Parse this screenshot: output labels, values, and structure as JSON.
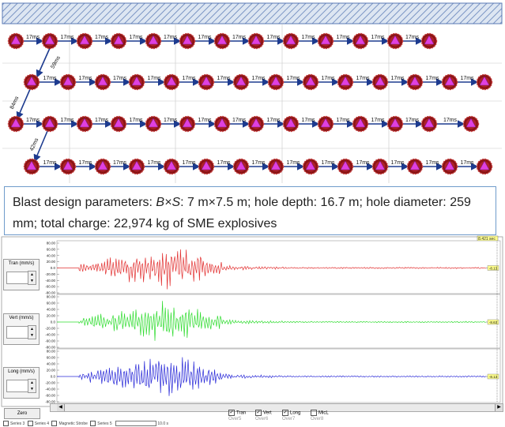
{
  "blast_layout": {
    "delay_label": "17ms",
    "diag_delays": [
      "59ms",
      "84ms",
      "42ms"
    ]
  },
  "caption": {
    "prefix": "Blast design parameters: ",
    "bs_symbol": "B×S",
    "text": ": 7 m×7.5 m; hole depth: 16.7 m; hole diameter: 259 mm; total charge: 22,974 kg of SME explosives"
  },
  "channels": [
    {
      "name": "Tran (mm/s)",
      "color": "#e23030",
      "readout": "-8.13",
      "icon": "seismograph-icon"
    },
    {
      "name": "Vert (mm/s)",
      "color": "#2fdc2f",
      "readout": "-8.63",
      "icon": "seismograph-icon"
    },
    {
      "name": "Long (mm/s)",
      "color": "#2a2ad8",
      "readout": "-8.13",
      "icon": "seismograph-icon"
    }
  ],
  "y_ticks": [
    "80.00",
    "60.00",
    "40.00",
    "20.00",
    "0.0",
    "-20.00",
    "-40.00",
    "-60.00",
    "-80.00"
  ],
  "top_readout": "8.421 sec",
  "toolbar": {
    "zoom_label": "Zero"
  },
  "legend": [
    {
      "label": "Tran",
      "checked": true,
      "sub": "Over5"
    },
    {
      "label": "Vert",
      "checked": true,
      "sub": "Over6"
    },
    {
      "label": "Long",
      "checked": true,
      "sub": "Over7"
    },
    {
      "label": "MicL",
      "checked": false,
      "sub": "Over8"
    }
  ],
  "footer": {
    "items": [
      "Series 3",
      "Series 4",
      "Magnetic Strobe",
      "Series 5"
    ],
    "value": "10.0 s"
  }
}
